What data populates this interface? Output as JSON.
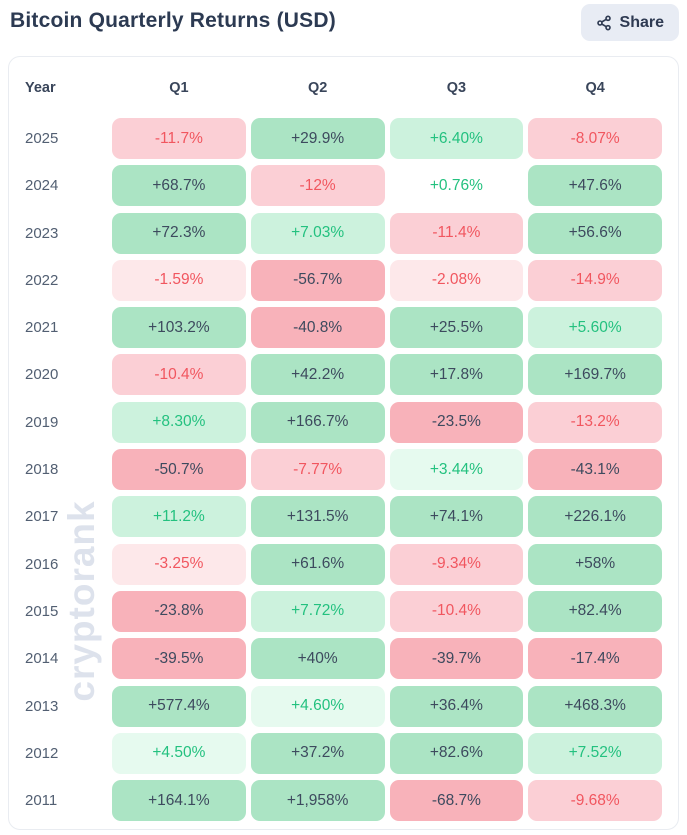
{
  "page": {
    "title": "Bitcoin Quarterly Returns (USD)",
    "share_label": "Share",
    "share_icon": "share-nodes-icon",
    "watermark": "cryptorank"
  },
  "colors": {
    "title_text": "#2c3a52",
    "share_bg": "#e8ecf4",
    "card_border": "#e9ecf1",
    "header_text": "#39455a",
    "year_text": "#525f72",
    "watermark_text": "#dde2ec",
    "tiers": {
      "g3": {
        "bg": "#abe4c4",
        "text": "#3d4a5e"
      },
      "g2": {
        "bg": "#ccf2dd",
        "text": "#23c17f"
      },
      "g1": {
        "bg": "#e6faef",
        "text": "#23c17f"
      },
      "g0": {
        "bg": "#ffffff",
        "text": "#23c17f"
      },
      "r3": {
        "bg": "#f8b2ba",
        "text": "#3d4a5e"
      },
      "r2": {
        "bg": "#fbcfd5",
        "text": "#f1565f"
      },
      "r1": {
        "bg": "#fde8ea",
        "text": "#f1565f"
      }
    }
  },
  "table": {
    "headers": [
      "Year",
      "Q1",
      "Q2",
      "Q3",
      "Q4"
    ],
    "rows": [
      {
        "year": "2025",
        "cells": [
          {
            "value": "-11.7%",
            "tier": "r2"
          },
          {
            "value": "+29.9%",
            "tier": "g3"
          },
          {
            "value": "+6.40%",
            "tier": "g2"
          },
          {
            "value": "-8.07%",
            "tier": "r2"
          }
        ]
      },
      {
        "year": "2024",
        "cells": [
          {
            "value": "+68.7%",
            "tier": "g3"
          },
          {
            "value": "-12%",
            "tier": "r2"
          },
          {
            "value": "+0.76%",
            "tier": "g0"
          },
          {
            "value": "+47.6%",
            "tier": "g3"
          }
        ]
      },
      {
        "year": "2023",
        "cells": [
          {
            "value": "+72.3%",
            "tier": "g3"
          },
          {
            "value": "+7.03%",
            "tier": "g2"
          },
          {
            "value": "-11.4%",
            "tier": "r2"
          },
          {
            "value": "+56.6%",
            "tier": "g3"
          }
        ]
      },
      {
        "year": "2022",
        "cells": [
          {
            "value": "-1.59%",
            "tier": "r1"
          },
          {
            "value": "-56.7%",
            "tier": "r3"
          },
          {
            "value": "-2.08%",
            "tier": "r1"
          },
          {
            "value": "-14.9%",
            "tier": "r2"
          }
        ]
      },
      {
        "year": "2021",
        "cells": [
          {
            "value": "+103.2%",
            "tier": "g3"
          },
          {
            "value": "-40.8%",
            "tier": "r3"
          },
          {
            "value": "+25.5%",
            "tier": "g3"
          },
          {
            "value": "+5.60%",
            "tier": "g2"
          }
        ]
      },
      {
        "year": "2020",
        "cells": [
          {
            "value": "-10.4%",
            "tier": "r2"
          },
          {
            "value": "+42.2%",
            "tier": "g3"
          },
          {
            "value": "+17.8%",
            "tier": "g3"
          },
          {
            "value": "+169.7%",
            "tier": "g3"
          }
        ]
      },
      {
        "year": "2019",
        "cells": [
          {
            "value": "+8.30%",
            "tier": "g2"
          },
          {
            "value": "+166.7%",
            "tier": "g3"
          },
          {
            "value": "-23.5%",
            "tier": "r3"
          },
          {
            "value": "-13.2%",
            "tier": "r2"
          }
        ]
      },
      {
        "year": "2018",
        "cells": [
          {
            "value": "-50.7%",
            "tier": "r3"
          },
          {
            "value": "-7.77%",
            "tier": "r2"
          },
          {
            "value": "+3.44%",
            "tier": "g1"
          },
          {
            "value": "-43.1%",
            "tier": "r3"
          }
        ]
      },
      {
        "year": "2017",
        "cells": [
          {
            "value": "+11.2%",
            "tier": "g2"
          },
          {
            "value": "+131.5%",
            "tier": "g3"
          },
          {
            "value": "+74.1%",
            "tier": "g3"
          },
          {
            "value": "+226.1%",
            "tier": "g3"
          }
        ]
      },
      {
        "year": "2016",
        "cells": [
          {
            "value": "-3.25%",
            "tier": "r1"
          },
          {
            "value": "+61.6%",
            "tier": "g3"
          },
          {
            "value": "-9.34%",
            "tier": "r2"
          },
          {
            "value": "+58%",
            "tier": "g3"
          }
        ]
      },
      {
        "year": "2015",
        "cells": [
          {
            "value": "-23.8%",
            "tier": "r3"
          },
          {
            "value": "+7.72%",
            "tier": "g2"
          },
          {
            "value": "-10.4%",
            "tier": "r2"
          },
          {
            "value": "+82.4%",
            "tier": "g3"
          }
        ]
      },
      {
        "year": "2014",
        "cells": [
          {
            "value": "-39.5%",
            "tier": "r3"
          },
          {
            "value": "+40%",
            "tier": "g3"
          },
          {
            "value": "-39.7%",
            "tier": "r3"
          },
          {
            "value": "-17.4%",
            "tier": "r3"
          }
        ]
      },
      {
        "year": "2013",
        "cells": [
          {
            "value": "+577.4%",
            "tier": "g3"
          },
          {
            "value": "+4.60%",
            "tier": "g1"
          },
          {
            "value": "+36.4%",
            "tier": "g3"
          },
          {
            "value": "+468.3%",
            "tier": "g3"
          }
        ]
      },
      {
        "year": "2012",
        "cells": [
          {
            "value": "+4.50%",
            "tier": "g1"
          },
          {
            "value": "+37.2%",
            "tier": "g3"
          },
          {
            "value": "+82.6%",
            "tier": "g3"
          },
          {
            "value": "+7.52%",
            "tier": "g2"
          }
        ]
      },
      {
        "year": "2011",
        "cells": [
          {
            "value": "+164.1%",
            "tier": "g3"
          },
          {
            "value": "+1,958%",
            "tier": "g3"
          },
          {
            "value": "-68.7%",
            "tier": "r3"
          },
          {
            "value": "-9.68%",
            "tier": "r2"
          }
        ]
      }
    ]
  },
  "chart_data": {
    "type": "heatmap",
    "title": "Bitcoin Quarterly Returns (USD)",
    "columns": [
      "Q1",
      "Q2",
      "Q3",
      "Q4"
    ],
    "rows": [
      "2025",
      "2024",
      "2023",
      "2022",
      "2021",
      "2020",
      "2019",
      "2018",
      "2017",
      "2016",
      "2015",
      "2014",
      "2013",
      "2012",
      "2011"
    ],
    "values_pct": [
      [
        -11.7,
        29.9,
        6.4,
        -8.07
      ],
      [
        68.7,
        -12,
        0.76,
        47.6
      ],
      [
        72.3,
        7.03,
        -11.4,
        56.6
      ],
      [
        -1.59,
        -56.7,
        -2.08,
        -14.9
      ],
      [
        103.2,
        -40.8,
        25.5,
        5.6
      ],
      [
        -10.4,
        42.2,
        17.8,
        169.7
      ],
      [
        8.3,
        166.7,
        -23.5,
        -13.2
      ],
      [
        -50.7,
        -7.77,
        3.44,
        -43.1
      ],
      [
        11.2,
        131.5,
        74.1,
        226.1
      ],
      [
        -3.25,
        61.6,
        -9.34,
        58
      ],
      [
        -23.8,
        7.72,
        -10.4,
        82.4
      ],
      [
        -39.5,
        40,
        -39.7,
        -17.4
      ],
      [
        577.4,
        4.6,
        36.4,
        468.3
      ],
      [
        4.5,
        37.2,
        82.6,
        7.52
      ],
      [
        164.1,
        1958,
        -68.7,
        -9.68
      ]
    ],
    "legend": "green = positive return, red = negative return; shade intensity scales with magnitude",
    "grid": false
  }
}
